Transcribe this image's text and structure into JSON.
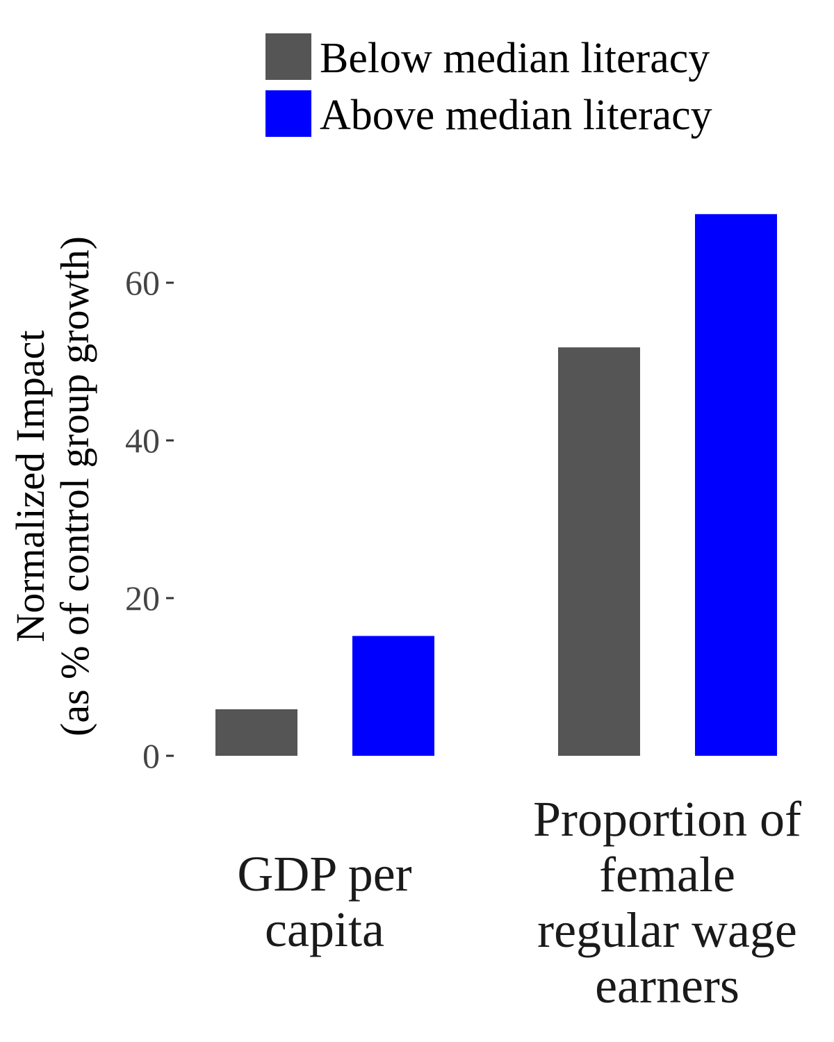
{
  "chart_data": {
    "type": "bar",
    "categories": [
      [
        "GDP per",
        "capita"
      ],
      [
        "Proportion of",
        "female",
        "regular wage",
        "earners"
      ]
    ],
    "series": [
      {
        "name": "Below median literacy",
        "color": "#555555",
        "values": [
          5.9,
          51.8
        ]
      },
      {
        "name": "Above median literacy",
        "color": "#0000ff",
        "values": [
          15.2,
          68.7
        ]
      }
    ],
    "ylabel": [
      "Normalized Impact",
      "(as % of control group growth)"
    ],
    "yticks": [
      0,
      20,
      40,
      60
    ],
    "ylim": [
      0,
      70
    ],
    "legend_position": "top",
    "grid": false
  }
}
